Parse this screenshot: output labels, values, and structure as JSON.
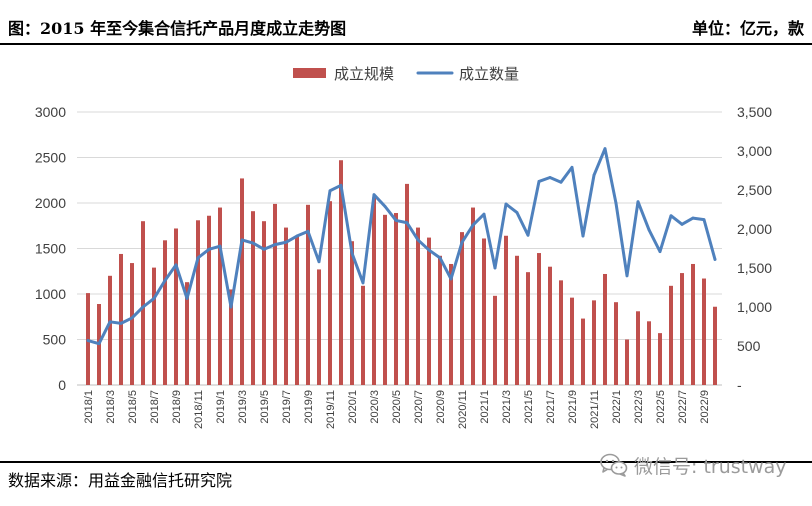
{
  "chart_data": {
    "type": "bar",
    "title": "图：2015 年至今集合信托产品月度成立走势图",
    "units": "单位：亿元，款",
    "x_tick_labels": [
      "2018/1",
      "2018/3",
      "2018/5",
      "2018/7",
      "2018/9",
      "2018/11",
      "2019/1",
      "2019/3",
      "2019/5",
      "2019/7",
      "2019/9",
      "2019/11",
      "2020/1",
      "2020/3",
      "2020/5",
      "2020/7",
      "2020/9",
      "2020/11",
      "2021/1",
      "2021/3",
      "2021/5",
      "2021/7",
      "2021/9",
      "2021/11",
      "2022/1",
      "2022/3",
      "2022/5",
      "2022/7",
      "2022/9"
    ],
    "label_every": 2,
    "series": [
      {
        "name": "成立规模",
        "type": "bar",
        "axis": "left",
        "color": "#C0504D",
        "values": [
          1010,
          890,
          1200,
          1440,
          1340,
          1800,
          1290,
          1590,
          1720,
          1130,
          1810,
          1860,
          1950,
          1050,
          2270,
          1910,
          1800,
          1990,
          1730,
          1640,
          1980,
          1270,
          2020,
          2470,
          1580,
          1090,
          2060,
          1870,
          1890,
          2210,
          1730,
          1620,
          1420,
          1330,
          1680,
          1950,
          1610,
          980,
          1640,
          1420,
          1240,
          1450,
          1300,
          1150,
          960,
          730,
          930,
          1220,
          910,
          500,
          810,
          700,
          570,
          1090,
          1230,
          1330,
          1170,
          860
        ]
      },
      {
        "name": "成立数量",
        "type": "line",
        "axis": "right",
        "color": "#4F81BD",
        "values": [
          570,
          530,
          810,
          790,
          860,
          1000,
          1110,
          1340,
          1540,
          1110,
          1630,
          1740,
          1780,
          1000,
          1860,
          1820,
          1740,
          1800,
          1830,
          1910,
          1970,
          1580,
          2490,
          2560,
          1690,
          1310,
          2440,
          2290,
          2110,
          2080,
          1860,
          1730,
          1630,
          1360,
          1830,
          2050,
          2190,
          1500,
          2320,
          2210,
          1920,
          2610,
          2660,
          2600,
          2790,
          1910,
          2690,
          3030,
          2330,
          1400,
          2350,
          1990,
          1710,
          2170,
          2060,
          2140,
          2120,
          1610
        ]
      }
    ],
    "y_left": {
      "ylim": [
        0,
        3000
      ],
      "tick_labels": [
        "0",
        "500",
        "1000",
        "1500",
        "2000",
        "2500",
        "3000"
      ]
    },
    "y_right": {
      "ylim": [
        0,
        3500
      ],
      "tick_labels": [
        "-",
        "500",
        "1,000",
        "1,500",
        "2,000",
        "2,500",
        "3,000",
        "3,500"
      ]
    },
    "legend_position": "top-center",
    "grid": true
  },
  "footer": {
    "source": "数据来源：用益金融信托研究院"
  },
  "watermark": {
    "icon": "wechat-icon",
    "text": "微信号: trustway"
  }
}
